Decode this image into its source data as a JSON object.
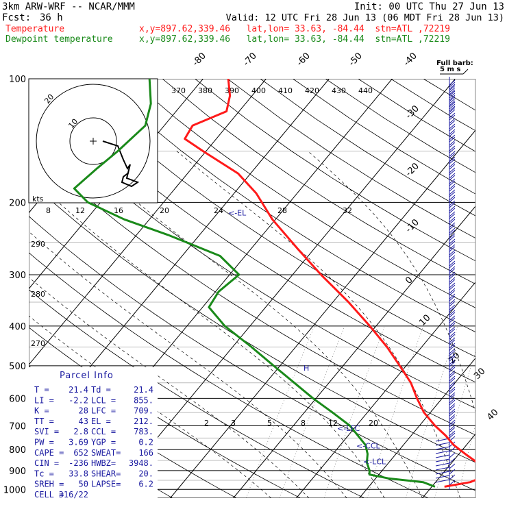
{
  "header": {
    "model": "3km ARW-WRF -- NCAR/MMM",
    "init": "Init: 00 UTC Thu 27 Jun 13",
    "fcst_label": "Fcst:",
    "fcst_value": "36 h",
    "valid": "Valid: 12 UTC Fri 28 Jun 13 (06 MDT Fri 28 Jun 13)",
    "temp_label": "Temperature",
    "temp_loc": "x,y=897.62,339.46   lat,lon= 33.63, -84.44  stn=ATL ,72219",
    "dew_label": "Dewpoint temperature",
    "dew_loc": "x,y=897.62,339.46   lat,lon= 33.63, -84.44  stn=ATL ,72219"
  },
  "colors": {
    "temperature": "#ff1a1a",
    "dewpoint": "#1a8a1a",
    "parcel_info": "#1a1aa0",
    "grid": "#000000"
  },
  "parcel_info": {
    "title": "Parcel Info",
    "rows": [
      [
        "T  =",
        "21.4",
        "Td =",
        "21.4"
      ],
      [
        "LI =",
        "-2.2",
        "LCL =",
        "855."
      ],
      [
        "K  =",
        "28",
        "LFC =",
        "709."
      ],
      [
        "TT =",
        "43",
        "EL =",
        "212."
      ],
      [
        "SVI =",
        "2.8",
        "CCL =",
        "783."
      ],
      [
        "PW =",
        "3.69",
        "YGP =",
        "0.2"
      ],
      [
        "CAPE =",
        "652",
        "SWEAT=",
        "166"
      ],
      [
        "CIN =",
        "-236",
        "HWBZ=",
        "3948."
      ],
      [
        "Tc =",
        "33.8",
        "SHEAR=",
        "20."
      ],
      [
        "SREH =",
        "50",
        "LAPSE=",
        "6.2"
      ],
      [
        "CELL =",
        "316/22",
        "",
        ""
      ]
    ]
  },
  "hodograph": {
    "kts_label": "kts",
    "ring_labels": [
      "10",
      "20"
    ]
  },
  "wind_barb_label": {
    "line1": "Full barb:",
    "line2": "5 m s"
  },
  "level_annotations": [
    "<-EL",
    "<-LFC",
    "<-CCL",
    "<-LCL",
    "H"
  ],
  "chart_data": {
    "type": "skew-T log-p",
    "pressure_ticks": [
      100,
      200,
      300,
      400,
      500,
      600,
      700,
      800,
      900,
      1000
    ],
    "isotherm_labels": [
      -80,
      -70,
      -60,
      -50,
      -40,
      -30,
      -20,
      -10,
      0,
      10,
      20,
      30,
      40
    ],
    "theta_labels": [
      370,
      380,
      390,
      400,
      410,
      420,
      430,
      440
    ],
    "mixing_ratio_labels_upper": [
      "8",
      "12",
      "16",
      "20",
      "24",
      "28",
      "32"
    ],
    "mixing_ratio_labels_lower": [
      "2",
      "3",
      "5",
      "8",
      "12",
      "20"
    ],
    "left_theta_labels": [
      "290",
      "280",
      "270"
    ],
    "series": [
      {
        "name": "Temperature",
        "points_p_t": [
          [
            985,
            22.0
          ],
          [
            960,
            25.5
          ],
          [
            930,
            27.0
          ],
          [
            900,
            26.5
          ],
          [
            860,
            24.0
          ],
          [
            820,
            21.0
          ],
          [
            780,
            18.0
          ],
          [
            740,
            15.5
          ],
          [
            700,
            12.5
          ],
          [
            650,
            9.0
          ],
          [
            600,
            6.0
          ],
          [
            550,
            3.0
          ],
          [
            500,
            -1.0
          ],
          [
            450,
            -5.5
          ],
          [
            400,
            -11.0
          ],
          [
            350,
            -17.5
          ],
          [
            300,
            -25.5
          ],
          [
            260,
            -32.5
          ],
          [
            220,
            -40.5
          ],
          [
            190,
            -46.5
          ],
          [
            170,
            -52.0
          ],
          [
            150,
            -60.5
          ],
          [
            140,
            -65.0
          ],
          [
            130,
            -65.5
          ],
          [
            120,
            -62.0
          ],
          [
            110,
            -63.5
          ],
          [
            100,
            -66.0
          ]
        ]
      },
      {
        "name": "Dewpoint temperature",
        "points_p_t": [
          [
            985,
            20.5
          ],
          [
            960,
            18.0
          ],
          [
            940,
            12.0
          ],
          [
            920,
            8.5
          ],
          [
            900,
            8.0
          ],
          [
            860,
            6.5
          ],
          [
            820,
            5.5
          ],
          [
            780,
            4.0
          ],
          [
            700,
            -1.0
          ],
          [
            650,
            -5.5
          ],
          [
            600,
            -10.5
          ],
          [
            550,
            -15.5
          ],
          [
            500,
            -21.0
          ],
          [
            450,
            -27.0
          ],
          [
            400,
            -34.0
          ],
          [
            360,
            -39.0
          ],
          [
            330,
            -39.5
          ],
          [
            300,
            -38.5
          ],
          [
            270,
            -44.0
          ],
          [
            240,
            -55.0
          ],
          [
            220,
            -64.0
          ],
          [
            200,
            -72.0
          ],
          [
            185,
            -76.0
          ],
          [
            165,
            -75.0
          ],
          [
            150,
            -74.0
          ],
          [
            130,
            -73.0
          ],
          [
            115,
            -75.0
          ],
          [
            100,
            -78.5
          ]
        ]
      }
    ],
    "annotations": [
      {
        "text": "<-EL",
        "p": 212
      },
      {
        "text": "<-LFC",
        "p": 709
      },
      {
        "text": "<-CCL",
        "p": 783
      },
      {
        "text": "<-LCL",
        "p": 855
      }
    ]
  }
}
